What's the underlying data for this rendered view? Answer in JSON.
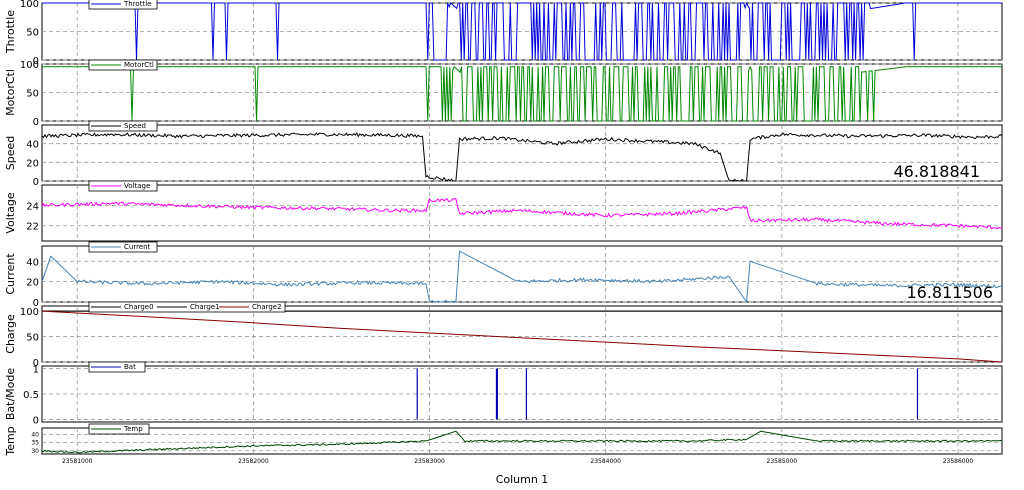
{
  "chart_data": {
    "type": "line",
    "xlabel": "Column 1",
    "xlim": [
      23580800,
      23586250
    ],
    "xticks": [
      23581000,
      23582000,
      23583000,
      23584000,
      23585000,
      23586000
    ],
    "xtick_labels": [
      "23581000",
      "23582000",
      "23583000",
      "23584000",
      "23585000",
      "23586000"
    ],
    "grid": true,
    "panels": [
      {
        "ylabel": "Throttle",
        "ylim": [
          0,
          100
        ],
        "yticks": [
          0,
          50,
          100
        ],
        "ytick_labels": [
          "0",
          "50",
          "100"
        ],
        "legend": [
          "Throttle"
        ],
        "series_colors": [
          "#0000dd"
        ],
        "series": [
          {
            "name": "Throttle",
            "style": "pulse",
            "base": 100,
            "low": 0,
            "x": [
              23580800,
              23582980,
              23582990,
              23583120,
              23583300,
              23583450,
              23583600,
              23583750,
              23583900,
              23584100,
              23584300,
              23584550,
              23584700,
              23584800,
              23584900,
              23585050,
              23585300,
              23585700,
              23586000,
              23586180,
              23586250
            ],
            "y": [
              100,
              100,
              0,
              100,
              50,
              30,
              60,
              40,
              20,
              50,
              30,
              0,
              0,
              100,
              40,
              60,
              80,
              100,
              100,
              100,
              100
            ]
          }
        ]
      },
      {
        "ylabel": "MotorCtl",
        "ylim": [
          0,
          100
        ],
        "yticks": [
          0,
          50,
          100
        ],
        "ytick_labels": [
          "0",
          "50",
          "100"
        ],
        "legend": [
          "MotorCtl"
        ],
        "series_colors": [
          "#008800"
        ],
        "series": [
          {
            "name": "MotorCtl",
            "style": "pulse",
            "base": 95,
            "low": 0,
            "x": [
              23580800,
              23582980,
              23582990,
              23583140,
              23583300,
              23583450,
              23583600,
              23583750,
              23583900,
              23584100,
              23584300,
              23584550,
              23584700,
              23584820,
              23584900,
              23585050,
              23585300,
              23585700,
              23586000,
              23586180,
              23586250
            ],
            "y": [
              95,
              95,
              0,
              95,
              50,
              30,
              60,
              40,
              20,
              50,
              30,
              0,
              0,
              95,
              40,
              60,
              80,
              95,
              95,
              95,
              95
            ]
          }
        ]
      },
      {
        "ylabel": "Speed",
        "ylim": [
          0,
          60
        ],
        "yticks": [
          0,
          20,
          40
        ],
        "ytick_labels": [
          "0",
          "20",
          "40"
        ],
        "legend": [
          "Speed"
        ],
        "series_colors": [
          "#000000"
        ],
        "value_label": "46.818841",
        "series": [
          {
            "name": "Speed",
            "style": "noisy",
            "x": [
              23580800,
              23581200,
              23581600,
              23582000,
              23582400,
              23582800,
              23582960,
              23582980,
              23583150,
              23583170,
              23583400,
              23583700,
              23584000,
              23584300,
              23584500,
              23584650,
              23584700,
              23584800,
              23584820,
              23585000,
              23585400,
              23585800,
              23586100,
              23586250
            ],
            "y": [
              48,
              50,
              48,
              49,
              50,
              49,
              48,
              5,
              0,
              45,
              46,
              40,
              45,
              42,
              40,
              30,
              0,
              0,
              45,
              50,
              48,
              49,
              47,
              48
            ]
          }
        ]
      },
      {
        "ylabel": "Voltage",
        "ylim": [
          20.5,
          26
        ],
        "yticks": [
          22,
          24
        ],
        "ytick_labels": [
          "22",
          "24"
        ],
        "legend": [
          "Voltage"
        ],
        "series_colors": [
          "#ff00ff"
        ],
        "series": [
          {
            "name": "Voltage",
            "style": "noisy",
            "x": [
              23580800,
              23581200,
              23581600,
              23582000,
              23582400,
              23582800,
              23582980,
              23583000,
              23583150,
              23583170,
              23583500,
              23584000,
              23584400,
              23584800,
              23584820,
              23585200,
              23585600,
              23586000,
              23586250
            ],
            "y": [
              24,
              24.2,
              24,
              23.8,
              23.7,
              23.5,
              23.5,
              24.5,
              24.5,
              23.2,
              23.5,
              23,
              23.2,
              23.8,
              22.5,
              22.6,
              22.2,
              22,
              21.8
            ]
          }
        ]
      },
      {
        "ylabel": "Current",
        "ylim": [
          0,
          55
        ],
        "yticks": [
          0,
          20,
          40
        ],
        "ytick_labels": [
          "0",
          "20",
          "40"
        ],
        "legend": [
          "Current"
        ],
        "series_colors": [
          "#4682b4"
        ],
        "value_label": "16.811506",
        "series": [
          {
            "name": "Current",
            "style": "noisy",
            "x": [
              23580800,
              23580850,
              23581000,
              23581400,
              23581800,
              23582200,
              23582600,
              23582980,
              23583000,
              23583150,
              23583170,
              23583500,
              23583900,
              23584300,
              23584700,
              23584800,
              23584820,
              23585200,
              23585600,
              23586000,
              23586250
            ],
            "y": [
              20,
              45,
              20,
              18,
              20,
              17,
              19,
              18,
              0,
              0,
              50,
              20,
              22,
              20,
              25,
              0,
              40,
              18,
              16,
              17,
              15
            ]
          }
        ]
      },
      {
        "ylabel": "Charge",
        "ylim": [
          0,
          110
        ],
        "yticks": [
          0,
          50,
          100
        ],
        "ytick_labels": [
          "0",
          "50",
          "100"
        ],
        "legend": [
          "Charge0",
          "Charge1",
          "Charge2"
        ],
        "series_colors": [
          "#000000",
          "#000000",
          "#8b0000"
        ],
        "series": [
          {
            "name": "Charge0",
            "style": "smooth",
            "x": [
              23580800,
              23586250
            ],
            "y": [
              100,
              100
            ]
          },
          {
            "name": "Charge1",
            "style": "smooth",
            "x": [
              23580800,
              23586250
            ],
            "y": [
              100,
              100
            ]
          },
          {
            "name": "Charge2",
            "style": "smooth",
            "x": [
              23580800,
              23581500,
              23582000,
              23582500,
              23583000,
              23583500,
              23584000,
              23584500,
              23585000,
              23585500,
              23586000,
              23586250
            ],
            "y": [
              100,
              87,
              77,
              66,
              57,
              48,
              39,
              30,
              22,
              14,
              6,
              0
            ]
          }
        ]
      },
      {
        "ylabel": "Bat/Mode",
        "ylim": [
          -0.05,
          1.05
        ],
        "yticks": [
          0,
          0.5,
          1
        ],
        "ytick_labels": [
          "0",
          "0.5",
          "1"
        ],
        "legend": [
          "Bat"
        ],
        "series_colors": [
          "#0000aa"
        ],
        "series": [
          {
            "name": "Bat",
            "style": "spikes",
            "x": [
              23582930,
              23583380,
              23583385,
              23583550,
              23585770
            ],
            "y": [
              1,
              1,
              1,
              1,
              1
            ]
          }
        ]
      },
      {
        "ylabel": "Temp",
        "ylim": [
          28,
          44
        ],
        "yticks": [
          30,
          35,
          40
        ],
        "ytick_labels": [
          "30",
          "35",
          "40"
        ],
        "legend": [
          "Temp"
        ],
        "series_colors": [
          "#004400"
        ],
        "series": [
          {
            "name": "Temp",
            "style": "noisy",
            "x": [
              23580800,
              23581000,
              23581500,
              23582000,
              23582500,
              23582980,
              23583150,
              23583200,
              23583600,
              23584000,
              23584500,
              23584800,
              23584880,
              23585200,
              23585600,
              23586000,
              23586250
            ],
            "y": [
              30,
              29,
              31,
              33,
              34,
              36,
              42,
              36,
              36,
              36,
              36,
              37,
              42,
              36,
              36,
              36,
              36
            ]
          }
        ]
      }
    ]
  }
}
